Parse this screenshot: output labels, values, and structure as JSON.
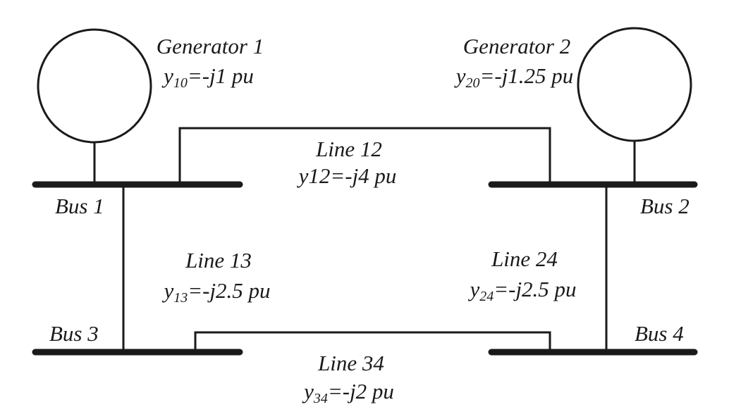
{
  "generators": [
    {
      "title": "Generator 1",
      "adm_symbol": "y",
      "adm_sub": "10",
      "adm_value": "=-j1 pu"
    },
    {
      "title": "Generator 2",
      "adm_symbol": "y",
      "adm_sub": "20",
      "adm_value": "=-j1.25 pu"
    }
  ],
  "buses": [
    {
      "label": "Bus 1"
    },
    {
      "label": "Bus 2"
    },
    {
      "label": "Bus 3"
    },
    {
      "label": "Bus 4"
    }
  ],
  "lines": {
    "l12": {
      "title": "Line 12",
      "adm_text": "y12=-j4 pu"
    },
    "l13": {
      "title": "Line 13",
      "adm_symbol": "y",
      "adm_sub": "13",
      "adm_value": "=-j2.5 pu"
    },
    "l24": {
      "title": "Line 24",
      "adm_symbol": "y",
      "adm_sub": "24",
      "adm_value": "=-j2.5 pu"
    },
    "l34": {
      "title": "Line 34",
      "adm_symbol": "y",
      "adm_sub": "34",
      "adm_value": "=-j2 pu"
    }
  },
  "colors": {
    "stroke": "#1a1a1a",
    "background": "#ffffff"
  }
}
